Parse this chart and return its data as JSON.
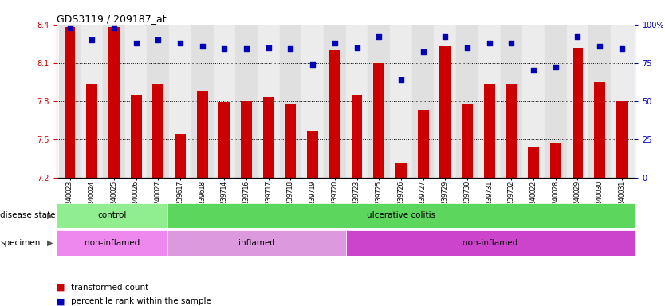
{
  "title": "GDS3119 / 209187_at",
  "samples": [
    "GSM240023",
    "GSM240024",
    "GSM240025",
    "GSM240026",
    "GSM240027",
    "GSM239617",
    "GSM239618",
    "GSM239714",
    "GSM239716",
    "GSM239717",
    "GSM239718",
    "GSM239719",
    "GSM239720",
    "GSM239723",
    "GSM239725",
    "GSM239726",
    "GSM239727",
    "GSM239729",
    "GSM239730",
    "GSM239731",
    "GSM239732",
    "GSM240022",
    "GSM240028",
    "GSM240029",
    "GSM240030",
    "GSM240031"
  ],
  "transformed_count": [
    8.38,
    7.93,
    8.38,
    7.85,
    7.93,
    7.54,
    7.88,
    7.79,
    7.8,
    7.83,
    7.78,
    7.56,
    8.2,
    7.85,
    8.1,
    7.32,
    7.73,
    8.23,
    7.78,
    7.93,
    7.93,
    7.44,
    7.47,
    8.22,
    7.95,
    7.8
  ],
  "percentile": [
    98,
    90,
    98,
    88,
    90,
    88,
    86,
    84,
    84,
    85,
    84,
    74,
    88,
    85,
    92,
    64,
    82,
    92,
    85,
    88,
    88,
    70,
    72,
    92,
    86,
    84
  ],
  "bar_color": "#cc0000",
  "dot_color": "#0000bb",
  "ylim_left": [
    7.2,
    8.4
  ],
  "ylim_right": [
    0,
    100
  ],
  "yticks_left": [
    7.2,
    7.5,
    7.8,
    8.1,
    8.4
  ],
  "yticks_right": [
    0,
    25,
    50,
    75,
    100
  ],
  "ytick_right_labels": [
    "0",
    "25",
    "50",
    "75",
    "100%"
  ],
  "grid_lines": [
    7.5,
    7.8,
    8.1
  ],
  "disease_state_groups": [
    {
      "label": "control",
      "start": 0,
      "end": 5,
      "color": "#90ee90"
    },
    {
      "label": "ulcerative colitis",
      "start": 5,
      "end": 26,
      "color": "#5cd65c"
    }
  ],
  "specimen_groups": [
    {
      "label": "non-inflamed",
      "start": 0,
      "end": 5,
      "color": "#ee88ee"
    },
    {
      "label": "inflamed",
      "start": 5,
      "end": 13,
      "color": "#dd99dd"
    },
    {
      "label": "non-inflamed",
      "start": 13,
      "end": 26,
      "color": "#cc44cc"
    }
  ],
  "fig_bg": "#ffffff",
  "plot_bg": "#ffffff",
  "label_row_bg": "#cccccc"
}
